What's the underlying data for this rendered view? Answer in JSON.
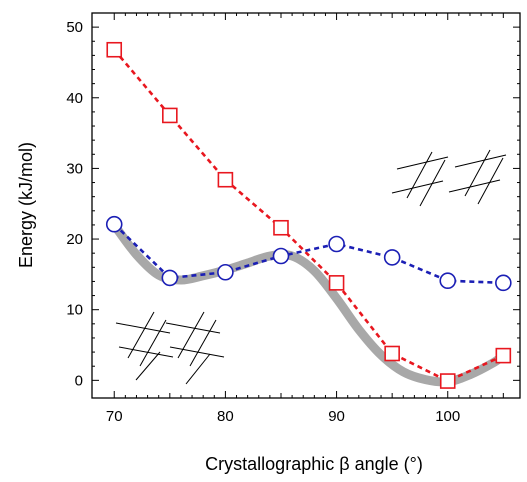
{
  "chart_data": {
    "type": "line",
    "xlabel": "Crystallographic β angle (°)",
    "ylabel": "Energy (kJ/mol)",
    "xlim": [
      68,
      106.5
    ],
    "ylim": [
      -2.5,
      52
    ],
    "xticks": [
      70,
      80,
      90,
      100
    ],
    "yticks": [
      0,
      10,
      20,
      30,
      40,
      50
    ],
    "grid": false,
    "legend": "none",
    "series": [
      {
        "marker": "square",
        "color": "#e8171f",
        "line": "dashed",
        "x": [
          70,
          75,
          80,
          85,
          90,
          95,
          100,
          105
        ],
        "values": [
          46.8,
          37.5,
          28.4,
          21.6,
          13.8,
          3.8,
          -0.1,
          3.5
        ]
      },
      {
        "marker": "circle",
        "color": "#1b1fb5",
        "line": "dashed",
        "x": [
          70,
          75,
          80,
          85,
          90,
          95,
          100,
          105
        ],
        "values": [
          22.1,
          14.5,
          15.3,
          17.6,
          19.3,
          17.4,
          14.1,
          13.8
        ]
      },
      {
        "marker": "none",
        "color": "#a8a8a8",
        "line": "solid-thick",
        "x": [
          70,
          72,
          74,
          76,
          78,
          80,
          82,
          84,
          86,
          88,
          90,
          92,
          94,
          96,
          98,
          100,
          102,
          104,
          105
        ],
        "values": [
          22.0,
          17.8,
          14.9,
          14.2,
          14.8,
          15.6,
          16.6,
          17.6,
          17.6,
          15.5,
          11.6,
          7.2,
          3.6,
          1.2,
          0.1,
          -0.2,
          0.8,
          2.4,
          3.5
        ]
      }
    ]
  }
}
